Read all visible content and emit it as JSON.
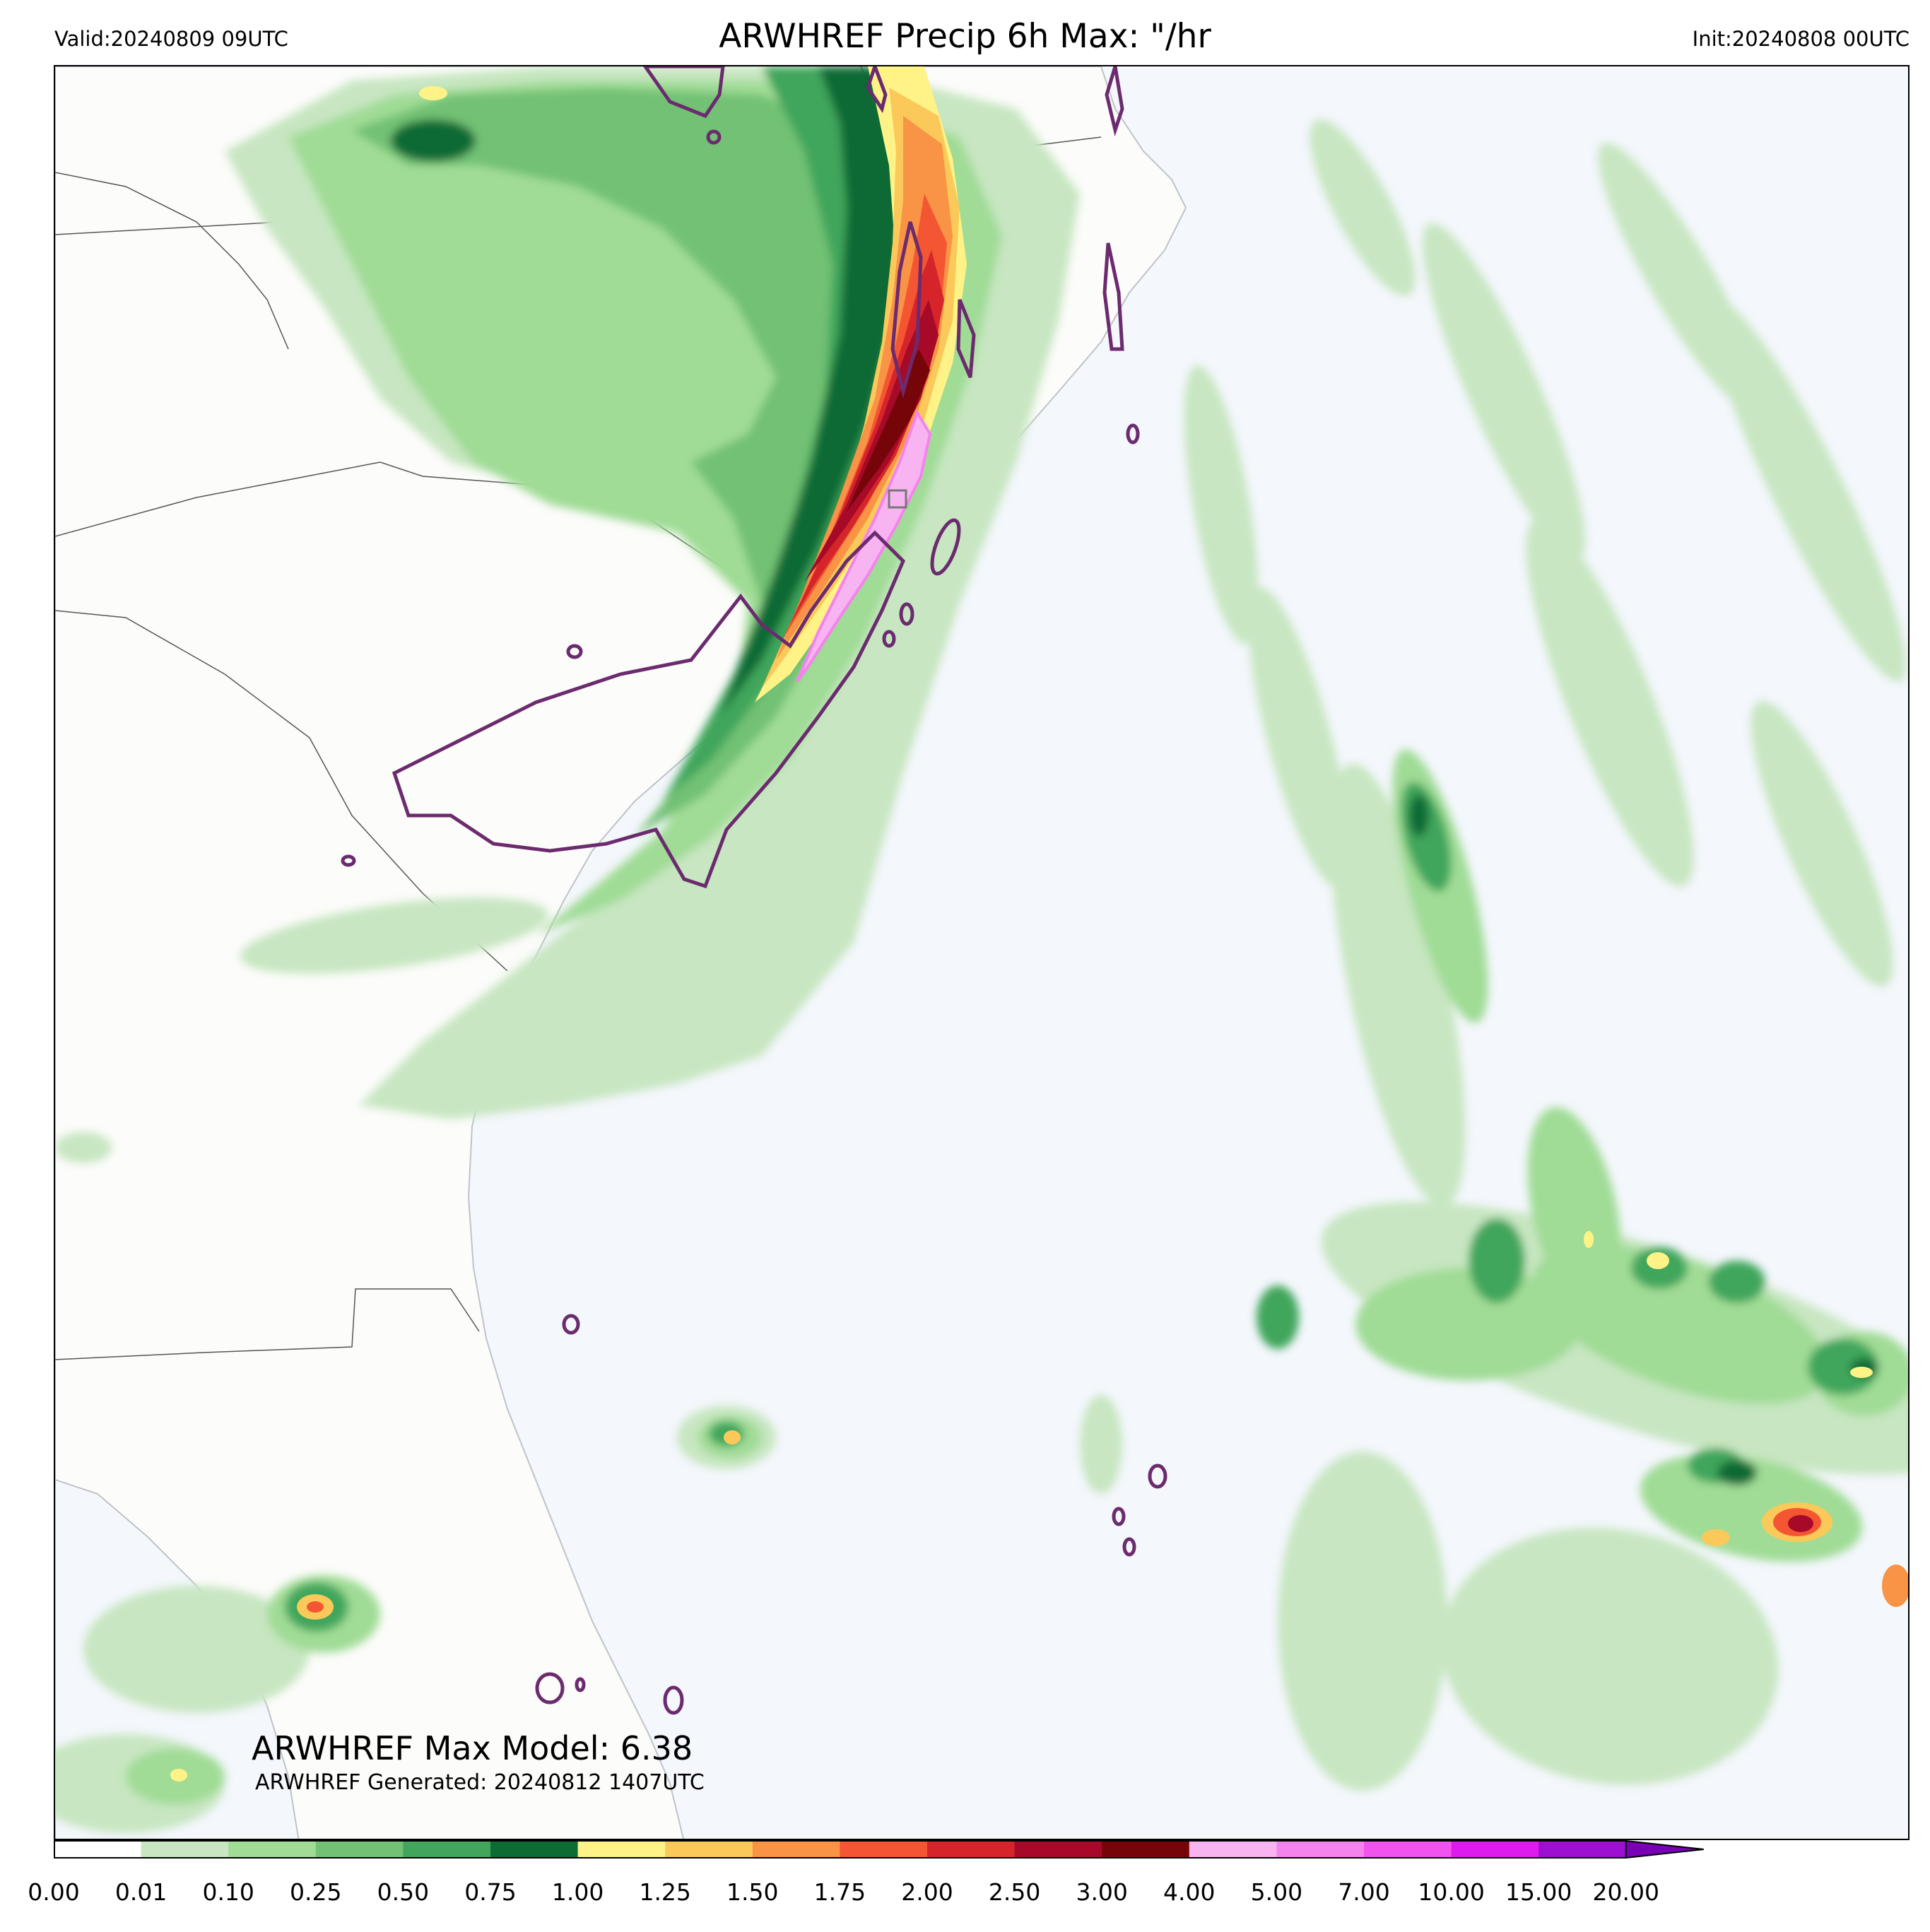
{
  "header": {
    "valid": "Valid:20240809 09UTC",
    "title": "ARWHREF Precip 6h Max: \"/hr",
    "init": "Init:20240808 00UTC"
  },
  "annotations": {
    "max_model": "ARWHREF Max Model: 6.38",
    "generated": "ARWHREF Generated: 20240812 1407UTC"
  },
  "colors": {
    "land": "#fcfcfa",
    "ocean": "#f4f7fc",
    "contour": "#6b2b6e",
    "state_border": "#555555"
  },
  "colorbar": {
    "ticks": [
      "0.00",
      "0.01",
      "0.10",
      "0.25",
      "0.50",
      "0.75",
      "1.00",
      "1.25",
      "1.50",
      "1.75",
      "2.00",
      "2.50",
      "3.00",
      "4.00",
      "5.00",
      "7.00",
      "10.00",
      "15.00",
      "20.00"
    ],
    "colors": [
      "#ffffff",
      "#c7e6c1",
      "#a0dc96",
      "#72c174",
      "#41a65b",
      "#0d6b34",
      "#fff387",
      "#fbc95a",
      "#f99345",
      "#f45532",
      "#d5252a",
      "#a70a28",
      "#750509",
      "#f7b4f0",
      "#f583ed",
      "#f153ee",
      "#de1bef",
      "#9c10d1"
    ],
    "extend_color": "#7a00b8"
  }
}
